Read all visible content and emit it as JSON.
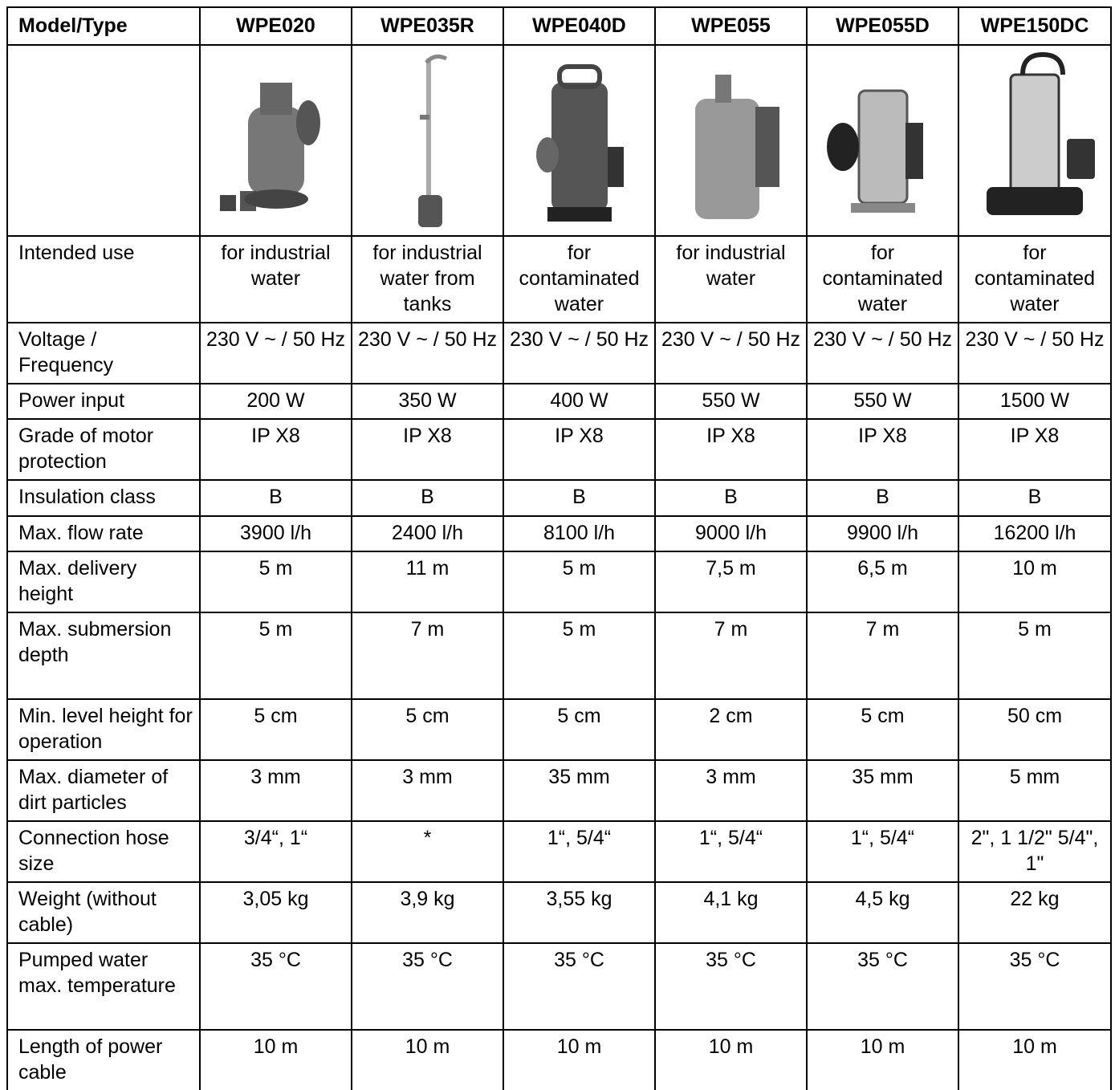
{
  "header": {
    "label": "Model/Type",
    "columns": [
      "WPE020",
      "WPE035R",
      "WPE040D",
      "WPE055",
      "WPE055D",
      "WPE150DC"
    ]
  },
  "rows": [
    {
      "label": "Intended use",
      "values": [
        "for industrial water",
        "for industrial water from tanks",
        "for contaminated water",
        "for industrial water",
        "for contaminated water",
        "for contaminated water"
      ]
    },
    {
      "label": "Voltage / Frequency",
      "values": [
        "230 V ~ / 50 Hz",
        "230 V ~ / 50 Hz",
        "230 V ~ / 50 Hz",
        "230 V ~ / 50 Hz",
        "230 V ~ / 50 Hz",
        "230 V ~ / 50 Hz"
      ]
    },
    {
      "label": "Power input",
      "values": [
        "200 W",
        "350 W",
        "400 W",
        "550 W",
        "550 W",
        "1500 W"
      ]
    },
    {
      "label": "Grade of motor protection",
      "values": [
        "IP X8",
        "IP X8",
        "IP X8",
        "IP X8",
        "IP X8",
        "IP X8"
      ]
    },
    {
      "label": "Insulation class",
      "values": [
        "B",
        "B",
        "B",
        "B",
        "B",
        "B"
      ]
    },
    {
      "label": "Max. flow rate",
      "values": [
        "3900 l/h",
        "2400 l/h",
        "8100 l/h",
        "9000 l/h",
        "9900 l/h",
        "16200 l/h"
      ]
    },
    {
      "label": "Max. delivery height",
      "values": [
        "5 m",
        "11 m",
        "5 m",
        "7,5 m",
        "6,5 m",
        "10 m"
      ]
    },
    {
      "label": "Max. submersion depth",
      "values": [
        "5 m",
        "7 m",
        "5 m",
        "7 m",
        "7 m",
        "5 m"
      ]
    },
    {
      "label": "Min. level height for operation",
      "values": [
        "5 cm",
        "5 cm",
        "5 cm",
        "2 cm",
        "5 cm",
        "50 cm"
      ]
    },
    {
      "label": "Max. diameter of dirt particles",
      "values": [
        "3 mm",
        "3 mm",
        "35 mm",
        "3 mm",
        "35 mm",
        "5 mm"
      ]
    },
    {
      "label": "Connection hose size",
      "values": [
        "3/4“, 1“",
        "*",
        "1“, 5/4“",
        "1“, 5/4“",
        "1“, 5/4“",
        "2\", 1 1/2\" 5/4\", 1\""
      ]
    },
    {
      "label": "Weight (without cable)",
      "values": [
        "3,05 kg",
        "3,9 kg",
        "3,55 kg",
        "4,1 kg",
        "4,5 kg",
        "22 kg"
      ]
    },
    {
      "label": "Pumped water max. temperature",
      "values": [
        "35 °C",
        "35 °C",
        "35 °C",
        "35 °C",
        "35 °C",
        "35 °C"
      ]
    },
    {
      "label": "Length of power cable",
      "values": [
        "10 m",
        "10 m",
        "10 m",
        "10 m",
        "10 m",
        "10 m"
      ]
    }
  ]
}
